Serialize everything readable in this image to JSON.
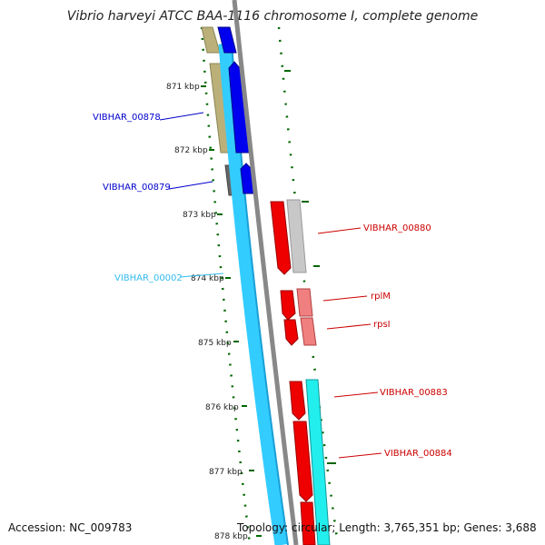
{
  "title": "Vibrio harveyi ATCC BAA-1116 chromosome I, complete genome",
  "footer": {
    "accession": "Accession: NC_009783",
    "topology": "Topology: circular; Length: 3,765,351 bp; Genes: 3,688"
  },
  "ticks": [
    "871 kbp",
    "872 kbp",
    "873 kbp",
    "874 kbp",
    "875 kbp",
    "876 kbp",
    "877 kbp",
    "878 kbp"
  ],
  "genes": [
    {
      "name": "VIBHAR_00878",
      "color": "#0000cc"
    },
    {
      "name": "VIBHAR_00879",
      "color": "#0000cc"
    },
    {
      "name": "VIBHAR_00002",
      "color": "#33bbee"
    },
    {
      "name": "VIBHAR_00880",
      "color": "#cc0000"
    },
    {
      "name": "rplM",
      "color": "#cc0000"
    },
    {
      "name": "rpsI",
      "color": "#cc0000"
    },
    {
      "name": "VIBHAR_00883",
      "color": "#cc0000"
    },
    {
      "name": "VIBHAR_00884",
      "color": "#cc0000"
    }
  ],
  "colors": {
    "forward_cds": "#ff0000",
    "reverse_cds": "#0000ff",
    "trna": "#33ccff",
    "gc_track": "#006600",
    "backbone": "#888888"
  }
}
